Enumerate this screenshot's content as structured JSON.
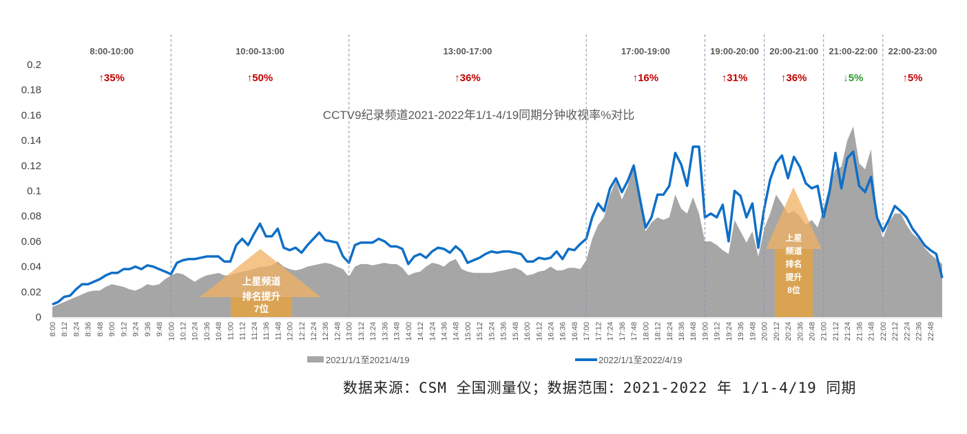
{
  "chart_data": {
    "type": "area+line",
    "title": "CCTV9纪录频道2021-2022年1/1-4/19同期分钟收视率%对比",
    "xlabel": "",
    "ylabel": "",
    "ylim": [
      0,
      0.2
    ],
    "yticks": [
      "0",
      "0.02",
      "0.04",
      "0.06",
      "0.08",
      "0.1",
      "0.12",
      "0.14",
      "0.16",
      "0.18",
      "0.2"
    ],
    "grid": false,
    "legend_position": "bottom",
    "x_range": [
      "8:00",
      "23:00"
    ],
    "x_step_minutes": 6,
    "xtick_labels": [
      "8:00",
      "8:12",
      "8:24",
      "8:36",
      "8:48",
      "9:00",
      "9:12",
      "9:24",
      "9:36",
      "9:48",
      "10:00",
      "10:12",
      "10:24",
      "10:36",
      "10:48",
      "11:00",
      "11:12",
      "11:24",
      "11:36",
      "11:48",
      "12:00",
      "12:12",
      "12:24",
      "12:36",
      "12:48",
      "13:00",
      "13:12",
      "13:24",
      "13:36",
      "13:48",
      "14:00",
      "14:12",
      "14:24",
      "14:36",
      "14:48",
      "15:00",
      "15:12",
      "15:24",
      "15:36",
      "15:48",
      "16:00",
      "16:12",
      "16:24",
      "16:36",
      "16:48",
      "17:00",
      "17:12",
      "17:24",
      "17:36",
      "17:48",
      "18:00",
      "18:12",
      "18:24",
      "18:36",
      "18:48",
      "19:00",
      "19:12",
      "19:24",
      "19:36",
      "19:48",
      "20:00",
      "20:12",
      "20:24",
      "20:36",
      "20:48",
      "21:00",
      "21:12",
      "21:24",
      "21:36",
      "21:48",
      "22:00",
      "22:12",
      "22:24",
      "22:36",
      "22:48"
    ],
    "series": [
      {
        "name": "2021/1/1至2021/4/19",
        "kind": "area",
        "color": "#a6a6a6",
        "values": [
          0.008,
          0.01,
          0.012,
          0.014,
          0.016,
          0.018,
          0.02,
          0.021,
          0.021,
          0.024,
          0.026,
          0.025,
          0.024,
          0.022,
          0.021,
          0.023,
          0.026,
          0.025,
          0.026,
          0.03,
          0.033,
          0.035,
          0.034,
          0.031,
          0.028,
          0.031,
          0.033,
          0.034,
          0.035,
          0.033,
          0.033,
          0.035,
          0.036,
          0.037,
          0.038,
          0.04,
          0.04,
          0.041,
          0.044,
          0.04,
          0.038,
          0.037,
          0.038,
          0.04,
          0.041,
          0.042,
          0.043,
          0.042,
          0.04,
          0.038,
          0.032,
          0.04,
          0.042,
          0.042,
          0.041,
          0.042,
          0.043,
          0.042,
          0.042,
          0.039,
          0.033,
          0.035,
          0.036,
          0.04,
          0.043,
          0.042,
          0.04,
          0.044,
          0.046,
          0.038,
          0.036,
          0.035,
          0.035,
          0.035,
          0.035,
          0.036,
          0.037,
          0.038,
          0.039,
          0.037,
          0.033,
          0.034,
          0.036,
          0.037,
          0.04,
          0.037,
          0.037,
          0.039,
          0.039,
          0.038,
          0.045,
          0.062,
          0.073,
          0.079,
          0.097,
          0.108,
          0.093,
          0.104,
          0.122,
          0.099,
          0.068,
          0.075,
          0.079,
          0.077,
          0.079,
          0.097,
          0.086,
          0.082,
          0.095,
          0.082,
          0.06,
          0.06,
          0.057,
          0.053,
          0.05,
          0.077,
          0.068,
          0.059,
          0.068,
          0.048,
          0.07,
          0.082,
          0.097,
          0.09,
          0.082,
          0.084,
          0.08,
          0.073,
          0.077,
          0.071,
          0.086,
          0.104,
          0.117,
          0.119,
          0.14,
          0.151,
          0.122,
          0.117,
          0.133,
          0.08,
          0.062,
          0.075,
          0.082,
          0.082,
          0.073,
          0.066,
          0.062,
          0.055,
          0.05,
          0.046,
          0.042
        ]
      },
      {
        "name": "2022/1/1至2022/4/19",
        "kind": "line",
        "color": "#0f6fc6",
        "values": [
          0.01,
          0.012,
          0.016,
          0.017,
          0.022,
          0.026,
          0.026,
          0.028,
          0.03,
          0.033,
          0.035,
          0.035,
          0.038,
          0.038,
          0.04,
          0.038,
          0.041,
          0.04,
          0.038,
          0.036,
          0.034,
          0.043,
          0.045,
          0.046,
          0.046,
          0.047,
          0.048,
          0.048,
          0.048,
          0.044,
          0.044,
          0.057,
          0.062,
          0.057,
          0.066,
          0.074,
          0.064,
          0.064,
          0.07,
          0.055,
          0.053,
          0.055,
          0.051,
          0.057,
          0.062,
          0.067,
          0.061,
          0.06,
          0.059,
          0.048,
          0.043,
          0.057,
          0.059,
          0.059,
          0.059,
          0.062,
          0.06,
          0.056,
          0.056,
          0.054,
          0.042,
          0.048,
          0.05,
          0.047,
          0.052,
          0.055,
          0.054,
          0.051,
          0.056,
          0.052,
          0.043,
          0.045,
          0.047,
          0.05,
          0.052,
          0.051,
          0.052,
          0.052,
          0.051,
          0.05,
          0.044,
          0.044,
          0.047,
          0.046,
          0.047,
          0.052,
          0.046,
          0.054,
          0.053,
          0.058,
          0.062,
          0.079,
          0.09,
          0.084,
          0.102,
          0.11,
          0.099,
          0.108,
          0.12,
          0.095,
          0.071,
          0.079,
          0.097,
          0.097,
          0.104,
          0.13,
          0.121,
          0.104,
          0.135,
          0.135,
          0.079,
          0.082,
          0.079,
          0.089,
          0.06,
          0.1,
          0.096,
          0.079,
          0.09,
          0.055,
          0.086,
          0.109,
          0.122,
          0.128,
          0.11,
          0.127,
          0.119,
          0.106,
          0.102,
          0.104,
          0.079,
          0.099,
          0.13,
          0.102,
          0.126,
          0.131,
          0.104,
          0.099,
          0.111,
          0.079,
          0.068,
          0.077,
          0.088,
          0.084,
          0.079,
          0.07,
          0.064,
          0.057,
          0.053,
          0.05,
          0.031
        ]
      }
    ],
    "periods": [
      {
        "label": "8:00-10:00",
        "start": "8:00",
        "end": "10:00",
        "change": "↑35%",
        "direction": "up"
      },
      {
        "label": "10:00-13:00",
        "start": "10:00",
        "end": "13:00",
        "change": "↑50%",
        "direction": "up"
      },
      {
        "label": "13:00-17:00",
        "start": "13:00",
        "end": "17:00",
        "change": "↑36%",
        "direction": "up"
      },
      {
        "label": "17:00-19:00",
        "start": "17:00",
        "end": "19:00",
        "change": "↑16%",
        "direction": "up"
      },
      {
        "label": "19:00-20:00",
        "start": "19:00",
        "end": "20:00",
        "change": "↑31%",
        "direction": "up"
      },
      {
        "label": "20:00-21:00",
        "start": "20:00",
        "end": "21:00",
        "change": "↑36%",
        "direction": "up"
      },
      {
        "label": "21:00-22:00",
        "start": "21:00",
        "end": "22:00",
        "change": "↓5%",
        "direction": "down"
      },
      {
        "label": "22:00-23:00",
        "start": "22:00",
        "end": "23:00",
        "change": "↑5%",
        "direction": "up"
      }
    ],
    "annotations": [
      {
        "lines": [
          "上星频道",
          "排名提升",
          "7位"
        ]
      },
      {
        "lines": [
          "上星",
          "频道",
          "排名",
          "提升",
          "8位"
        ]
      }
    ],
    "colors": {
      "up": "#c00000",
      "down": "#2e9a2e",
      "divider": "#8496b0",
      "arrow": "#d9a352"
    }
  },
  "source_note": "数据来源：CSM 全国测量仪；数据范围：2021-2022 年 1/1-4/19 同期"
}
